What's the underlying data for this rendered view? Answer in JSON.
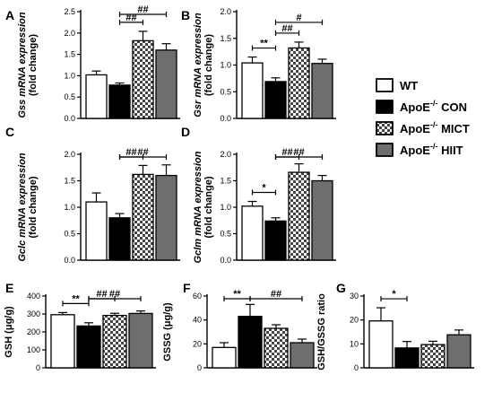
{
  "groups": {
    "wt": {
      "label": "WT",
      "label_sup": "",
      "label_tail": "",
      "fill": "#ffffff",
      "pattern": "none"
    },
    "con": {
      "label": "ApoE",
      "label_sup": "-/-",
      "label_tail": " CON",
      "fill": "#000000",
      "pattern": "none"
    },
    "mict": {
      "label": "ApoE",
      "label_sup": "-/-",
      "label_tail": " MICT",
      "fill": "#ffffff",
      "pattern": "checker"
    },
    "hiit": {
      "label": "ApoE",
      "label_sup": "-/-",
      "label_tail": " HIIT",
      "fill": "#6e6e6e",
      "pattern": "none"
    }
  },
  "chart_data": [
    {
      "panel": "A",
      "type": "bar",
      "ylabel_lines": [
        [
          "Gss",
          " mRNA expression"
        ],
        [
          "(fold change)"
        ]
      ],
      "ylim": [
        0,
        2.5
      ],
      "yticks": [
        "0.0",
        "0.5",
        "1.0",
        "1.5",
        "2.0",
        "2.5"
      ],
      "values": [
        1.02,
        0.78,
        1.82,
        1.6
      ],
      "errors": [
        0.09,
        0.05,
        0.22,
        0.15
      ],
      "significance": [
        {
          "from": 1,
          "to": 2,
          "label": "##"
        },
        {
          "from": 1,
          "to": 3,
          "label": "##"
        }
      ]
    },
    {
      "panel": "B",
      "type": "bar",
      "ylabel_lines": [
        [
          "Gsr",
          " mRNA expression"
        ],
        [
          "(fold change)"
        ]
      ],
      "ylim": [
        0,
        2.0
      ],
      "yticks": [
        "0.0",
        "0.5",
        "1.0",
        "1.5",
        "2.0"
      ],
      "values": [
        1.04,
        0.69,
        1.32,
        1.03
      ],
      "errors": [
        0.11,
        0.07,
        0.11,
        0.08
      ],
      "significance": [
        {
          "from": 0,
          "to": 1,
          "label": "**"
        },
        {
          "from": 1,
          "to": 2,
          "label": "##"
        },
        {
          "from": 1,
          "to": 3,
          "label": "#"
        }
      ]
    },
    {
      "panel": "C",
      "type": "bar",
      "ylabel_lines": [
        [
          "Gclc",
          " mRNA expression"
        ],
        [
          "(fold change)"
        ]
      ],
      "ylim": [
        0,
        2.0
      ],
      "yticks": [
        "0.0",
        "0.5",
        "1.0",
        "1.5",
        "2.0"
      ],
      "values": [
        1.1,
        0.8,
        1.62,
        1.6
      ],
      "errors": [
        0.17,
        0.08,
        0.17,
        0.2
      ],
      "significance": [
        {
          "from": 1,
          "to": 2,
          "label": "##"
        },
        {
          "from": 1,
          "to": 3,
          "label": "##"
        }
      ]
    },
    {
      "panel": "D",
      "type": "bar",
      "ylabel_lines": [
        [
          "Gclm",
          " mRNA expression"
        ],
        [
          "(fold change)"
        ]
      ],
      "ylim": [
        0,
        2.0
      ],
      "yticks": [
        "0.0",
        "0.5",
        "1.0",
        "1.5",
        "2.0"
      ],
      "values": [
        1.02,
        0.74,
        1.66,
        1.5
      ],
      "errors": [
        0.09,
        0.06,
        0.16,
        0.1
      ],
      "significance": [
        {
          "from": 0,
          "to": 1,
          "label": "*"
        },
        {
          "from": 1,
          "to": 2,
          "label": "##"
        },
        {
          "from": 1,
          "to": 3,
          "label": "##"
        }
      ]
    },
    {
      "panel": "E",
      "type": "bar",
      "ylabel_lines": [
        [
          "GSH (μg/g)"
        ]
      ],
      "ylim": [
        0,
        400
      ],
      "yticks": [
        "0",
        "100",
        "200",
        "300",
        "400"
      ],
      "values": [
        296,
        233,
        292,
        303
      ],
      "errors": [
        12,
        18,
        12,
        14
      ],
      "significance": [
        {
          "from": 0,
          "to": 1,
          "label": "**"
        },
        {
          "from": 1,
          "to": 2,
          "label": "##"
        },
        {
          "from": 1,
          "to": 3,
          "label": "##"
        }
      ]
    },
    {
      "panel": "F",
      "type": "bar",
      "ylabel_lines": [
        [
          "GSSG (μg/g)"
        ]
      ],
      "ylim": [
        0,
        60
      ],
      "yticks": [
        "0",
        "20",
        "40",
        "60"
      ],
      "values": [
        17,
        43,
        33,
        21
      ],
      "errors": [
        4,
        10,
        3,
        3
      ],
      "significance": [
        {
          "from": 0,
          "to": 1,
          "label": "**"
        },
        {
          "from": 1,
          "to": 3,
          "label": "##"
        }
      ]
    },
    {
      "panel": "G",
      "type": "bar",
      "ylabel_lines": [
        [
          "GSH/GSSG ratio"
        ]
      ],
      "ylim": [
        0,
        30
      ],
      "yticks": [
        "0",
        "10",
        "20",
        "30"
      ],
      "values": [
        19.6,
        8.3,
        9.7,
        13.8
      ],
      "errors": [
        5.5,
        2.7,
        1.4,
        2.0
      ],
      "significance": [
        {
          "from": 0,
          "to": 1,
          "label": "*"
        }
      ]
    }
  ]
}
